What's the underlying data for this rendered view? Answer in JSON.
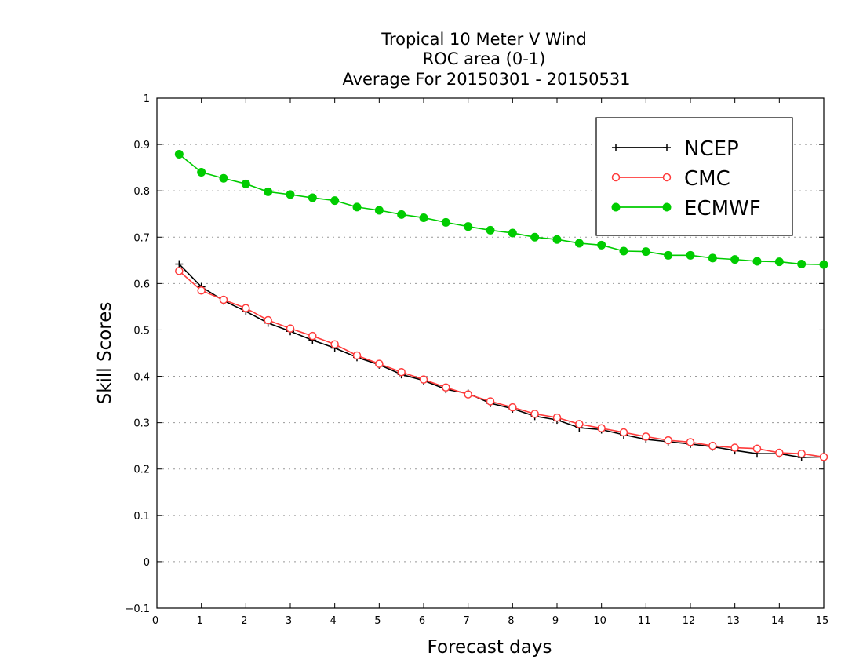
{
  "chart_data": {
    "type": "line",
    "title": [
      "Tropical 10 Meter V Wind",
      "ROC area (0-1)",
      "Average For 20150301 - 20150531"
    ],
    "xlabel": "Forecast days",
    "ylabel": "Skill Scores",
    "xlim": [
      0,
      15
    ],
    "ylim": [
      -0.1,
      1
    ],
    "x_ticks": [
      "0",
      "1",
      "2",
      "3",
      "4",
      "5",
      "6",
      "7",
      "8",
      "9",
      "10",
      "11",
      "12",
      "13",
      "14",
      "15"
    ],
    "y_ticks": [
      "−0.1",
      "0",
      "0.1",
      "0.2",
      "0.3",
      "0.4",
      "0.5",
      "0.6",
      "0.7",
      "0.8",
      "0.9",
      "1"
    ],
    "grid": "horizontal dotted",
    "legend_position": "top-right",
    "x": [
      0.5,
      1,
      1.5,
      2,
      2.5,
      3,
      3.5,
      4,
      4.5,
      5,
      5.5,
      6,
      6.5,
      7,
      7.5,
      8,
      8.5,
      9,
      9.5,
      10,
      10.5,
      11,
      11.5,
      12,
      12.5,
      13,
      13.5,
      14,
      14.5,
      15
    ],
    "series": [
      {
        "name": "NCEP",
        "color": "#000000",
        "marker": "plus",
        "values": [
          0.642,
          0.593,
          0.563,
          0.54,
          0.515,
          0.497,
          0.478,
          0.461,
          0.441,
          0.425,
          0.404,
          0.391,
          0.372,
          0.363,
          0.342,
          0.33,
          0.314,
          0.306,
          0.289,
          0.285,
          0.274,
          0.264,
          0.259,
          0.254,
          0.248,
          0.24,
          0.233,
          0.233,
          0.225,
          0.226
        ]
      },
      {
        "name": "CMC",
        "color": "#ff3b3b",
        "marker": "open-circle",
        "values": [
          0.627,
          0.585,
          0.565,
          0.547,
          0.521,
          0.503,
          0.487,
          0.469,
          0.445,
          0.427,
          0.409,
          0.393,
          0.376,
          0.361,
          0.346,
          0.333,
          0.319,
          0.311,
          0.297,
          0.288,
          0.279,
          0.27,
          0.262,
          0.258,
          0.25,
          0.246,
          0.244,
          0.235,
          0.233,
          0.226
        ]
      },
      {
        "name": "ECMWF",
        "color": "#00cc00",
        "marker": "filled-circle",
        "values": [
          0.879,
          0.84,
          0.827,
          0.815,
          0.798,
          0.792,
          0.785,
          0.779,
          0.765,
          0.758,
          0.749,
          0.742,
          0.732,
          0.723,
          0.715,
          0.709,
          0.7,
          0.695,
          0.687,
          0.683,
          0.67,
          0.669,
          0.661,
          0.661,
          0.655,
          0.652,
          0.648,
          0.647,
          0.642,
          0.641
        ]
      }
    ]
  }
}
